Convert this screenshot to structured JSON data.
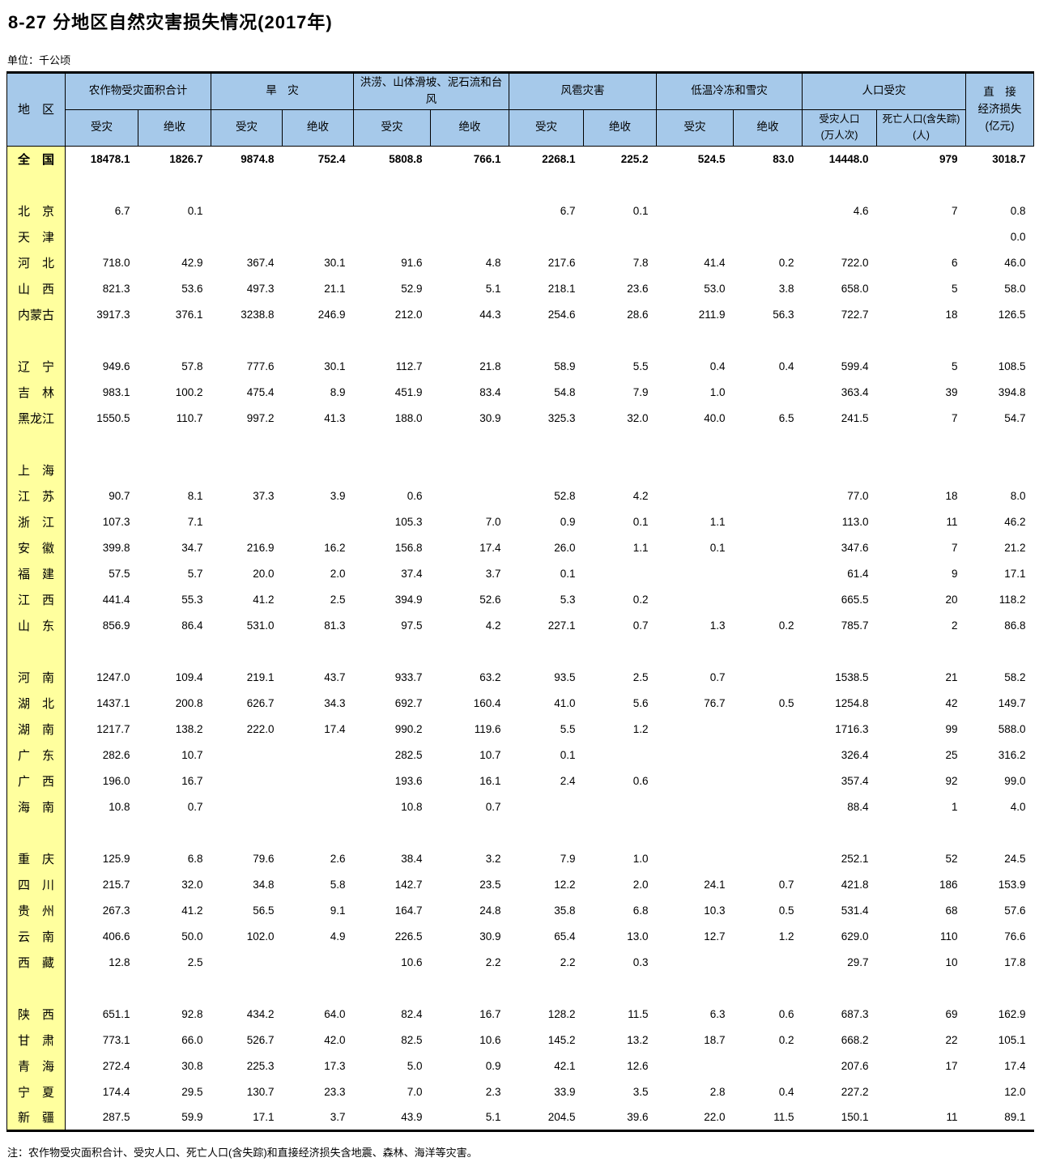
{
  "page": {
    "title": "8-27   分地区自然灾害损失情况(2017年)",
    "unit_label": "单位：千公顷",
    "footnote": "注：农作物受灾面积合计、受灾人口、死亡人口(含失踪)和直接经济损失含地震、森林、海洋等灾害。"
  },
  "colors": {
    "header_bg": "#a6c9ea",
    "region_bg": "#ffff9e",
    "border": "#000000"
  },
  "table": {
    "region_header": "地　区",
    "groups": [
      {
        "label": "农作物受灾面积合计",
        "cols": [
          "受灾",
          "绝收"
        ]
      },
      {
        "label": "旱　灾",
        "cols": [
          "受灾",
          "绝收"
        ]
      },
      {
        "label": "洪涝、山体滑坡、泥石流和台风",
        "cols": [
          "受灾",
          "绝收"
        ]
      },
      {
        "label": "风雹灾害",
        "cols": [
          "受灾",
          "绝收"
        ]
      },
      {
        "label": "低温冷冻和雪灾",
        "cols": [
          "受灾",
          "绝收"
        ]
      },
      {
        "label": "人口受灾",
        "cols": [
          "受灾人口\n(万人次)",
          "死亡人口(含失踪)\n(人)"
        ]
      }
    ],
    "last_col": "直　接\n经济损失\n(亿元)",
    "rows": [
      {
        "name": "全　国",
        "bold": true,
        "values": [
          "18478.1",
          "1826.7",
          "9874.8",
          "752.4",
          "5808.8",
          "766.1",
          "2268.1",
          "225.2",
          "524.5",
          "83.0",
          "14448.0",
          "979",
          "3018.7"
        ]
      },
      {
        "spacer": true
      },
      {
        "name": "北　京",
        "values": [
          "6.7",
          "0.1",
          "",
          "",
          "",
          "",
          "6.7",
          "0.1",
          "",
          "",
          "4.6",
          "7",
          "0.8"
        ]
      },
      {
        "name": "天　津",
        "values": [
          "",
          "",
          "",
          "",
          "",
          "",
          "",
          "",
          "",
          "",
          "",
          "",
          "0.0"
        ]
      },
      {
        "name": "河　北",
        "values": [
          "718.0",
          "42.9",
          "367.4",
          "30.1",
          "91.6",
          "4.8",
          "217.6",
          "7.8",
          "41.4",
          "0.2",
          "722.0",
          "6",
          "46.0"
        ]
      },
      {
        "name": "山　西",
        "values": [
          "821.3",
          "53.6",
          "497.3",
          "21.1",
          "52.9",
          "5.1",
          "218.1",
          "23.6",
          "53.0",
          "3.8",
          "658.0",
          "5",
          "58.0"
        ]
      },
      {
        "name": "内蒙古",
        "values": [
          "3917.3",
          "376.1",
          "3238.8",
          "246.9",
          "212.0",
          "44.3",
          "254.6",
          "28.6",
          "211.9",
          "56.3",
          "722.7",
          "18",
          "126.5"
        ]
      },
      {
        "spacer": true
      },
      {
        "name": "辽　宁",
        "values": [
          "949.6",
          "57.8",
          "777.6",
          "30.1",
          "112.7",
          "21.8",
          "58.9",
          "5.5",
          "0.4",
          "0.4",
          "599.4",
          "5",
          "108.5"
        ]
      },
      {
        "name": "吉　林",
        "values": [
          "983.1",
          "100.2",
          "475.4",
          "8.9",
          "451.9",
          "83.4",
          "54.8",
          "7.9",
          "1.0",
          "",
          "363.4",
          "39",
          "394.8"
        ]
      },
      {
        "name": "黑龙江",
        "values": [
          "1550.5",
          "110.7",
          "997.2",
          "41.3",
          "188.0",
          "30.9",
          "325.3",
          "32.0",
          "40.0",
          "6.5",
          "241.5",
          "7",
          "54.7"
        ]
      },
      {
        "spacer": true
      },
      {
        "name": "上　海",
        "values": [
          "",
          "",
          "",
          "",
          "",
          "",
          "",
          "",
          "",
          "",
          "",
          "",
          ""
        ]
      },
      {
        "name": "江　苏",
        "values": [
          "90.7",
          "8.1",
          "37.3",
          "3.9",
          "0.6",
          "",
          "52.8",
          "4.2",
          "",
          "",
          "77.0",
          "18",
          "8.0"
        ]
      },
      {
        "name": "浙　江",
        "values": [
          "107.3",
          "7.1",
          "",
          "",
          "105.3",
          "7.0",
          "0.9",
          "0.1",
          "1.1",
          "",
          "113.0",
          "11",
          "46.2"
        ]
      },
      {
        "name": "安　徽",
        "values": [
          "399.8",
          "34.7",
          "216.9",
          "16.2",
          "156.8",
          "17.4",
          "26.0",
          "1.1",
          "0.1",
          "",
          "347.6",
          "7",
          "21.2"
        ]
      },
      {
        "name": "福　建",
        "values": [
          "57.5",
          "5.7",
          "20.0",
          "2.0",
          "37.4",
          "3.7",
          "0.1",
          "",
          "",
          "",
          "61.4",
          "9",
          "17.1"
        ]
      },
      {
        "name": "江　西",
        "values": [
          "441.4",
          "55.3",
          "41.2",
          "2.5",
          "394.9",
          "52.6",
          "5.3",
          "0.2",
          "",
          "",
          "665.5",
          "20",
          "118.2"
        ]
      },
      {
        "name": "山　东",
        "values": [
          "856.9",
          "86.4",
          "531.0",
          "81.3",
          "97.5",
          "4.2",
          "227.1",
          "0.7",
          "1.3",
          "0.2",
          "785.7",
          "2",
          "86.8"
        ]
      },
      {
        "spacer": true
      },
      {
        "name": "河　南",
        "values": [
          "1247.0",
          "109.4",
          "219.1",
          "43.7",
          "933.7",
          "63.2",
          "93.5",
          "2.5",
          "0.7",
          "",
          "1538.5",
          "21",
          "58.2"
        ]
      },
      {
        "name": "湖　北",
        "values": [
          "1437.1",
          "200.8",
          "626.7",
          "34.3",
          "692.7",
          "160.4",
          "41.0",
          "5.6",
          "76.7",
          "0.5",
          "1254.8",
          "42",
          "149.7"
        ]
      },
      {
        "name": "湖　南",
        "values": [
          "1217.7",
          "138.2",
          "222.0",
          "17.4",
          "990.2",
          "119.6",
          "5.5",
          "1.2",
          "",
          "",
          "1716.3",
          "99",
          "588.0"
        ]
      },
      {
        "name": "广　东",
        "values": [
          "282.6",
          "10.7",
          "",
          "",
          "282.5",
          "10.7",
          "0.1",
          "",
          "",
          "",
          "326.4",
          "25",
          "316.2"
        ]
      },
      {
        "name": "广　西",
        "values": [
          "196.0",
          "16.7",
          "",
          "",
          "193.6",
          "16.1",
          "2.4",
          "0.6",
          "",
          "",
          "357.4",
          "92",
          "99.0"
        ]
      },
      {
        "name": "海　南",
        "values": [
          "10.8",
          "0.7",
          "",
          "",
          "10.8",
          "0.7",
          "",
          "",
          "",
          "",
          "88.4",
          "1",
          "4.0"
        ]
      },
      {
        "spacer": true
      },
      {
        "name": "重　庆",
        "values": [
          "125.9",
          "6.8",
          "79.6",
          "2.6",
          "38.4",
          "3.2",
          "7.9",
          "1.0",
          "",
          "",
          "252.1",
          "52",
          "24.5"
        ]
      },
      {
        "name": "四　川",
        "values": [
          "215.7",
          "32.0",
          "34.8",
          "5.8",
          "142.7",
          "23.5",
          "12.2",
          "2.0",
          "24.1",
          "0.7",
          "421.8",
          "186",
          "153.9"
        ]
      },
      {
        "name": "贵　州",
        "values": [
          "267.3",
          "41.2",
          "56.5",
          "9.1",
          "164.7",
          "24.8",
          "35.8",
          "6.8",
          "10.3",
          "0.5",
          "531.4",
          "68",
          "57.6"
        ]
      },
      {
        "name": "云　南",
        "values": [
          "406.6",
          "50.0",
          "102.0",
          "4.9",
          "226.5",
          "30.9",
          "65.4",
          "13.0",
          "12.7",
          "1.2",
          "629.0",
          "110",
          "76.6"
        ]
      },
      {
        "name": "西　藏",
        "values": [
          "12.8",
          "2.5",
          "",
          "",
          "10.6",
          "2.2",
          "2.2",
          "0.3",
          "",
          "",
          "29.7",
          "10",
          "17.8"
        ]
      },
      {
        "spacer": true
      },
      {
        "name": "陕　西",
        "values": [
          "651.1",
          "92.8",
          "434.2",
          "64.0",
          "82.4",
          "16.7",
          "128.2",
          "11.5",
          "6.3",
          "0.6",
          "687.3",
          "69",
          "162.9"
        ]
      },
      {
        "name": "甘　肃",
        "values": [
          "773.1",
          "66.0",
          "526.7",
          "42.0",
          "82.5",
          "10.6",
          "145.2",
          "13.2",
          "18.7",
          "0.2",
          "668.2",
          "22",
          "105.1"
        ]
      },
      {
        "name": "青　海",
        "values": [
          "272.4",
          "30.8",
          "225.3",
          "17.3",
          "5.0",
          "0.9",
          "42.1",
          "12.6",
          "",
          "",
          "207.6",
          "17",
          "17.4"
        ]
      },
      {
        "name": "宁　夏",
        "values": [
          "174.4",
          "29.5",
          "130.7",
          "23.3",
          "7.0",
          "2.3",
          "33.9",
          "3.5",
          "2.8",
          "0.4",
          "227.2",
          "",
          "12.0"
        ]
      },
      {
        "name": "新　疆",
        "values": [
          "287.5",
          "59.9",
          "17.1",
          "3.7",
          "43.9",
          "5.1",
          "204.5",
          "39.6",
          "22.0",
          "11.5",
          "150.1",
          "11",
          "89.1"
        ]
      }
    ]
  }
}
